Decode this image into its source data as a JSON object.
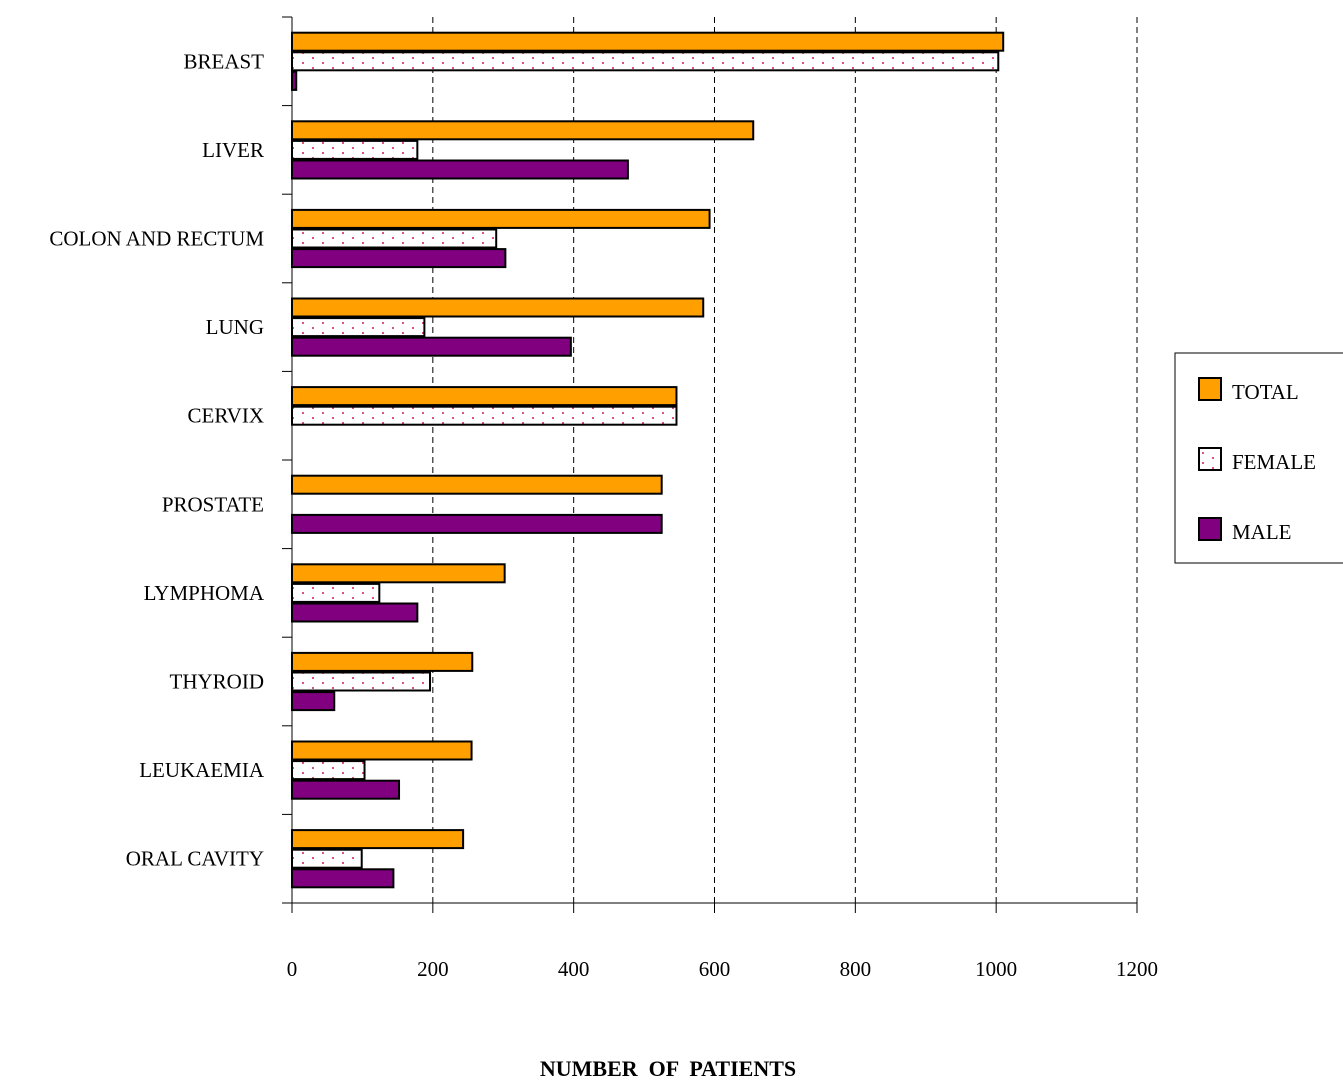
{
  "chart_data": {
    "type": "bar",
    "orientation": "horizontal",
    "title": "",
    "xlabel": "NUMBER  OF  PATIENTS",
    "ylabel": "",
    "xlim": [
      0,
      1200
    ],
    "xticks": [
      0,
      200,
      400,
      600,
      800,
      1000,
      1200
    ],
    "grid": "vertical-dashed",
    "legend_position": "right",
    "categories": [
      "BREAST",
      "LIVER",
      "COLON AND RECTUM",
      "LUNG",
      "CERVIX",
      "PROSTATE",
      "LYMPHOMA",
      "THYROID",
      "LEUKAEMIA",
      "ORAL CAVITY"
    ],
    "series": [
      {
        "name": "TOTAL",
        "color": "#FFA000",
        "pattern": "solid",
        "values": [
          1010,
          655,
          593,
          584,
          546,
          525,
          302,
          256,
          255,
          243
        ]
      },
      {
        "name": "FEMALE",
        "color": "#FFFFFF",
        "pattern": "dots",
        "values": [
          1003,
          178,
          290,
          188,
          546,
          0,
          124,
          196,
          103,
          99
        ]
      },
      {
        "name": "MALE",
        "color": "#800080",
        "pattern": "solid",
        "values": [
          6,
          477,
          303,
          396,
          0,
          525,
          178,
          60,
          152,
          144
        ]
      }
    ]
  }
}
